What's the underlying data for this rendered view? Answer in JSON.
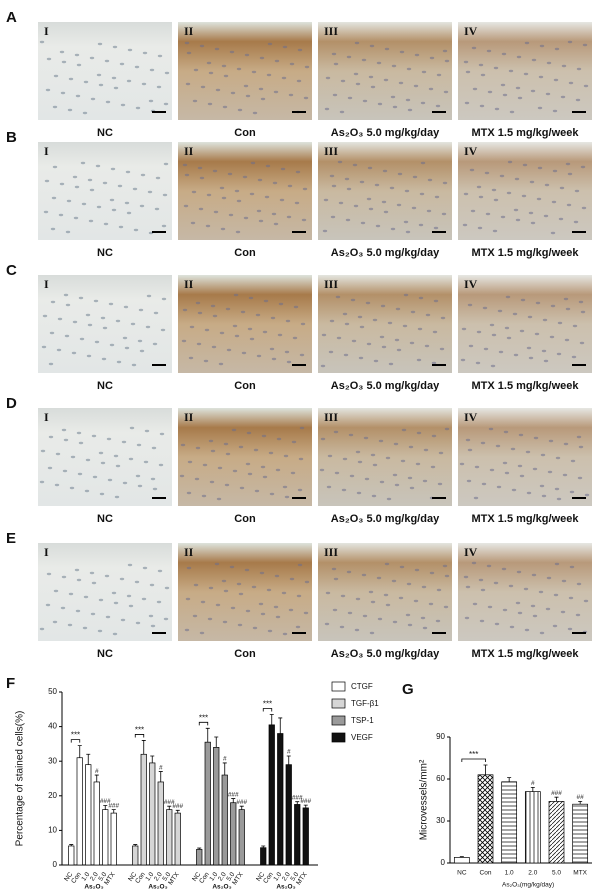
{
  "panels": [
    {
      "label": "A",
      "images": [
        {
          "numeral": "I",
          "caption": "NC"
        },
        {
          "numeral": "II",
          "caption": "Con"
        },
        {
          "numeral": "III",
          "caption": "As₂O₃ 5.0 mg/kg/day"
        },
        {
          "numeral": "IV",
          "caption": "MTX 1.5 mg/kg/week"
        }
      ]
    },
    {
      "label": "B",
      "images": [
        {
          "numeral": "I",
          "caption": "NC"
        },
        {
          "numeral": "II",
          "caption": "Con"
        },
        {
          "numeral": "III",
          "caption": "As₂O₃ 5.0 mg/kg/day"
        },
        {
          "numeral": "IV",
          "caption": "MTX 1.5 mg/kg/week"
        }
      ]
    },
    {
      "label": "C",
      "images": [
        {
          "numeral": "I",
          "caption": "NC"
        },
        {
          "numeral": "II",
          "caption": "Con"
        },
        {
          "numeral": "III",
          "caption": "As₂O₃ 5.0 mg/kg/day"
        },
        {
          "numeral": "IV",
          "caption": "MTX 1.5 mg/kg/week"
        }
      ]
    },
    {
      "label": "D",
      "images": [
        {
          "numeral": "I",
          "caption": "NC"
        },
        {
          "numeral": "II",
          "caption": "Con"
        },
        {
          "numeral": "III",
          "caption": "As₂O₃ 5.0 mg/kg/day"
        },
        {
          "numeral": "IV",
          "caption": "MTX 1.5 mg/kg/week"
        }
      ]
    },
    {
      "label": "E",
      "images": [
        {
          "numeral": "I",
          "caption": "NC"
        },
        {
          "numeral": "II",
          "caption": "Con"
        },
        {
          "numeral": "III",
          "caption": "As₂O₃ 5.0 mg/kg/day"
        },
        {
          "numeral": "IV",
          "caption": "MTX 1.5 mg/kg/week"
        }
      ]
    }
  ],
  "chart_data": [
    {
      "type": "bar",
      "panel_label": "F",
      "ylabel": "Percentage of stained cells(%)",
      "group_label": "As₂O₃",
      "bracket_label": "***",
      "categories": [
        "NC",
        "Con",
        "1.0",
        "2.0",
        "5.0",
        "MTX"
      ],
      "ylim": [
        0,
        50
      ],
      "yticks": [
        0,
        10,
        20,
        30,
        40,
        50
      ],
      "series": [
        {
          "name": "CTGF",
          "color": "#ffffff",
          "values": [
            5.5,
            31,
            29,
            24,
            16,
            15
          ],
          "errors": [
            0.4,
            3.5,
            3,
            2,
            1.2,
            1
          ],
          "sig": [
            null,
            null,
            null,
            "#",
            "###",
            "###"
          ]
        },
        {
          "name": "TGF-β1",
          "color": "#d6d6d6",
          "values": [
            5.5,
            32,
            29.5,
            24,
            16,
            15
          ],
          "errors": [
            0.4,
            4,
            2,
            3,
            1,
            0.8
          ],
          "sig": [
            null,
            null,
            null,
            "#",
            "###",
            "###"
          ]
        },
        {
          "name": "TSP-1",
          "color": "#9a9a9a",
          "values": [
            4.5,
            35.5,
            34,
            26,
            18,
            16
          ],
          "errors": [
            0.4,
            4,
            3,
            3.5,
            1.2,
            1
          ],
          "sig": [
            null,
            null,
            null,
            "#",
            "###",
            "###"
          ]
        },
        {
          "name": "VEGF",
          "color": "#111111",
          "values": [
            5,
            40.5,
            38,
            29,
            17.5,
            16.5
          ],
          "errors": [
            0.5,
            3,
            4.5,
            2.5,
            0.8,
            0.8
          ],
          "sig": [
            null,
            null,
            null,
            "#",
            "###",
            "###"
          ]
        }
      ]
    },
    {
      "type": "bar",
      "panel_label": "G",
      "ylabel": "Microvessels/mm²",
      "xlabel": "As₂O₃(mg/kg/day)",
      "bracket_label": "***",
      "color": "#000000",
      "categories": [
        "NC",
        "Con",
        "1.0",
        "2.0",
        "5.0",
        "MTX"
      ],
      "values": [
        4,
        63,
        58,
        51,
        44,
        42
      ],
      "errors": [
        0.5,
        7,
        3,
        3,
        3,
        2
      ],
      "sig": [
        null,
        null,
        null,
        "#",
        "###",
        "##"
      ],
      "ylim": [
        0,
        90
      ],
      "yticks": [
        0,
        30,
        60,
        90
      ]
    }
  ]
}
